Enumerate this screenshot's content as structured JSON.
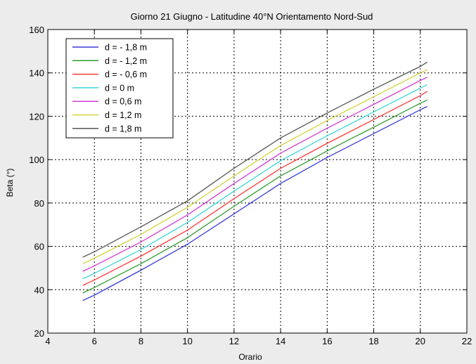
{
  "chart_data": {
    "type": "line",
    "title": "Giorno 21 Giugno - Latitudine 40°N  Orientamento Nord-Sud",
    "xlabel": "Orario",
    "ylabel": "Beta (°)",
    "xlim": [
      4,
      22
    ],
    "ylim": [
      20,
      160
    ],
    "xticks": [
      4,
      6,
      8,
      10,
      12,
      14,
      16,
      18,
      20,
      22
    ],
    "yticks": [
      20,
      40,
      60,
      80,
      100,
      120,
      140,
      160
    ],
    "grid": true,
    "legend_position": "top-left",
    "x": [
      5.5,
      6,
      8,
      10,
      12,
      14,
      16,
      18,
      20,
      20.3
    ],
    "series": [
      {
        "name": "d = - 1,8 m",
        "color": "#3a3ad6",
        "values": [
          35,
          37.5,
          49,
          61,
          75,
          89,
          101,
          112,
          123,
          124.5
        ]
      },
      {
        "name": "d = - 1,2 m",
        "color": "#2e9c2e",
        "values": [
          38.5,
          41,
          52,
          64,
          78.5,
          92.5,
          104,
          115,
          126,
          127.5
        ]
      },
      {
        "name": "d = - 0,6 m",
        "color": "#ff3a3a",
        "values": [
          42,
          44.5,
          55.5,
          67.5,
          82,
          96,
          107.5,
          118.5,
          129.5,
          131.5
        ]
      },
      {
        "name": "d = 0 m",
        "color": "#3cd6d6",
        "values": [
          45,
          47.5,
          58.5,
          71,
          85.5,
          99.5,
          111,
          122,
          133,
          134.5
        ]
      },
      {
        "name": "d = 0,6 m",
        "color": "#d23cd2",
        "values": [
          48.5,
          51,
          62,
          74.5,
          89,
          103,
          114.5,
          125.5,
          136.5,
          138
        ]
      },
      {
        "name": "d = 1,2 m",
        "color": "#d2d23c",
        "values": [
          52,
          54.5,
          65.5,
          78,
          92.5,
          106.5,
          118,
          129,
          140,
          141.5
        ]
      },
      {
        "name": "d = 1,8 m",
        "color": "#555555",
        "values": [
          55,
          57.5,
          69,
          81,
          96,
          110,
          121.5,
          132.5,
          143,
          145
        ]
      }
    ]
  }
}
